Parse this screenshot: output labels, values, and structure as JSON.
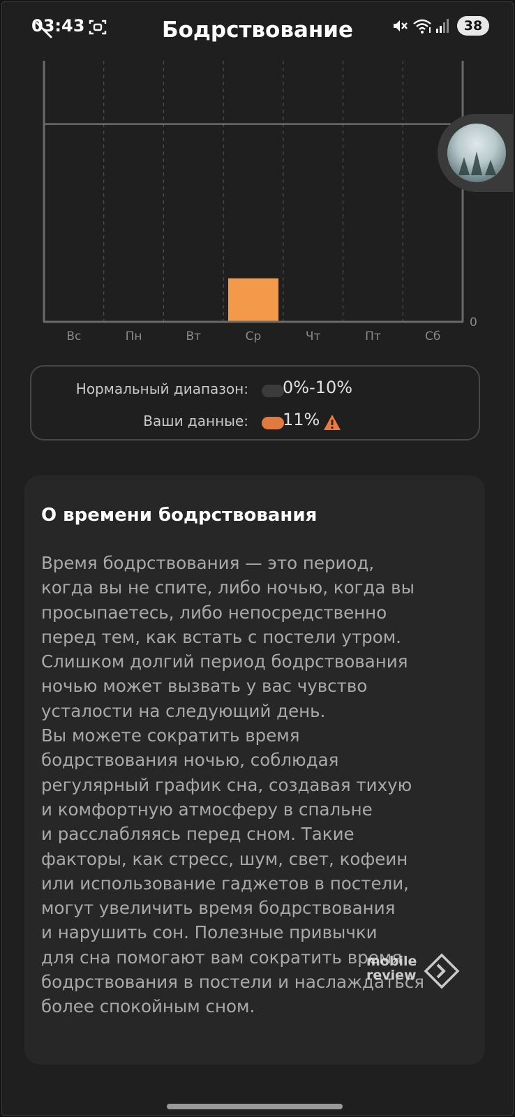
{
  "status_bar": {
    "time": "03:43",
    "battery": "38",
    "icons": [
      "screen-record-icon",
      "mute-icon",
      "wifi-icon",
      "signal-icon"
    ]
  },
  "header": {
    "title": "Бодрствование",
    "back_icon": "back-arrow-icon"
  },
  "chart_data": {
    "type": "bar",
    "categories": [
      "Вс",
      "Пн",
      "Вт",
      "Ср",
      "Чт",
      "Пт",
      "Сб"
    ],
    "values": [
      0,
      0,
      0,
      11,
      0,
      0,
      0
    ],
    "unit": "%",
    "reference_line": 50,
    "y_tick_labels": [
      "0"
    ],
    "ylim": [
      0,
      66
    ],
    "grid": "vertical dashed",
    "bar_color": "#f39a4a"
  },
  "legend": {
    "normal_label": "Нормальный диапазон:",
    "normal_value": "0%-10%",
    "normal_color": "#3b3b3b",
    "yours_label": "Ваши данные:",
    "yours_value": "11%",
    "yours_color": "#e07a3f",
    "warning_color": "#f07a3a"
  },
  "info": {
    "title": "О времени бодрствования",
    "text": "Время бодрствования — это период,\nкогда вы не спите, либо ночью, когда вы\nпросыпаетесь, либо непосредственно\nперед тем, как встать с постели утром.\nСлишком долгий период бодрствования\nночью может вызвать у вас чувство\nусталости на следующий день.\nВы можете сократить время\nбодрствования ночью, соблюдая\nрегулярный график сна, создавая тихую\nи комфортную атмосферу в спальне\nи расслабляясь перед сном. Такие\nфакторы, как стресс, шум, свет, кофеин\nили использование гаджетов в постели,\nмогут увеличить время бодрствования\nи нарушить сон. Полезные привычки\nдля сна помогают вам сократить время\nбодрствования в постели и наслаждаться\nболее спокойным сном."
  },
  "watermark": {
    "line1": "mobile",
    "line2": "review"
  }
}
